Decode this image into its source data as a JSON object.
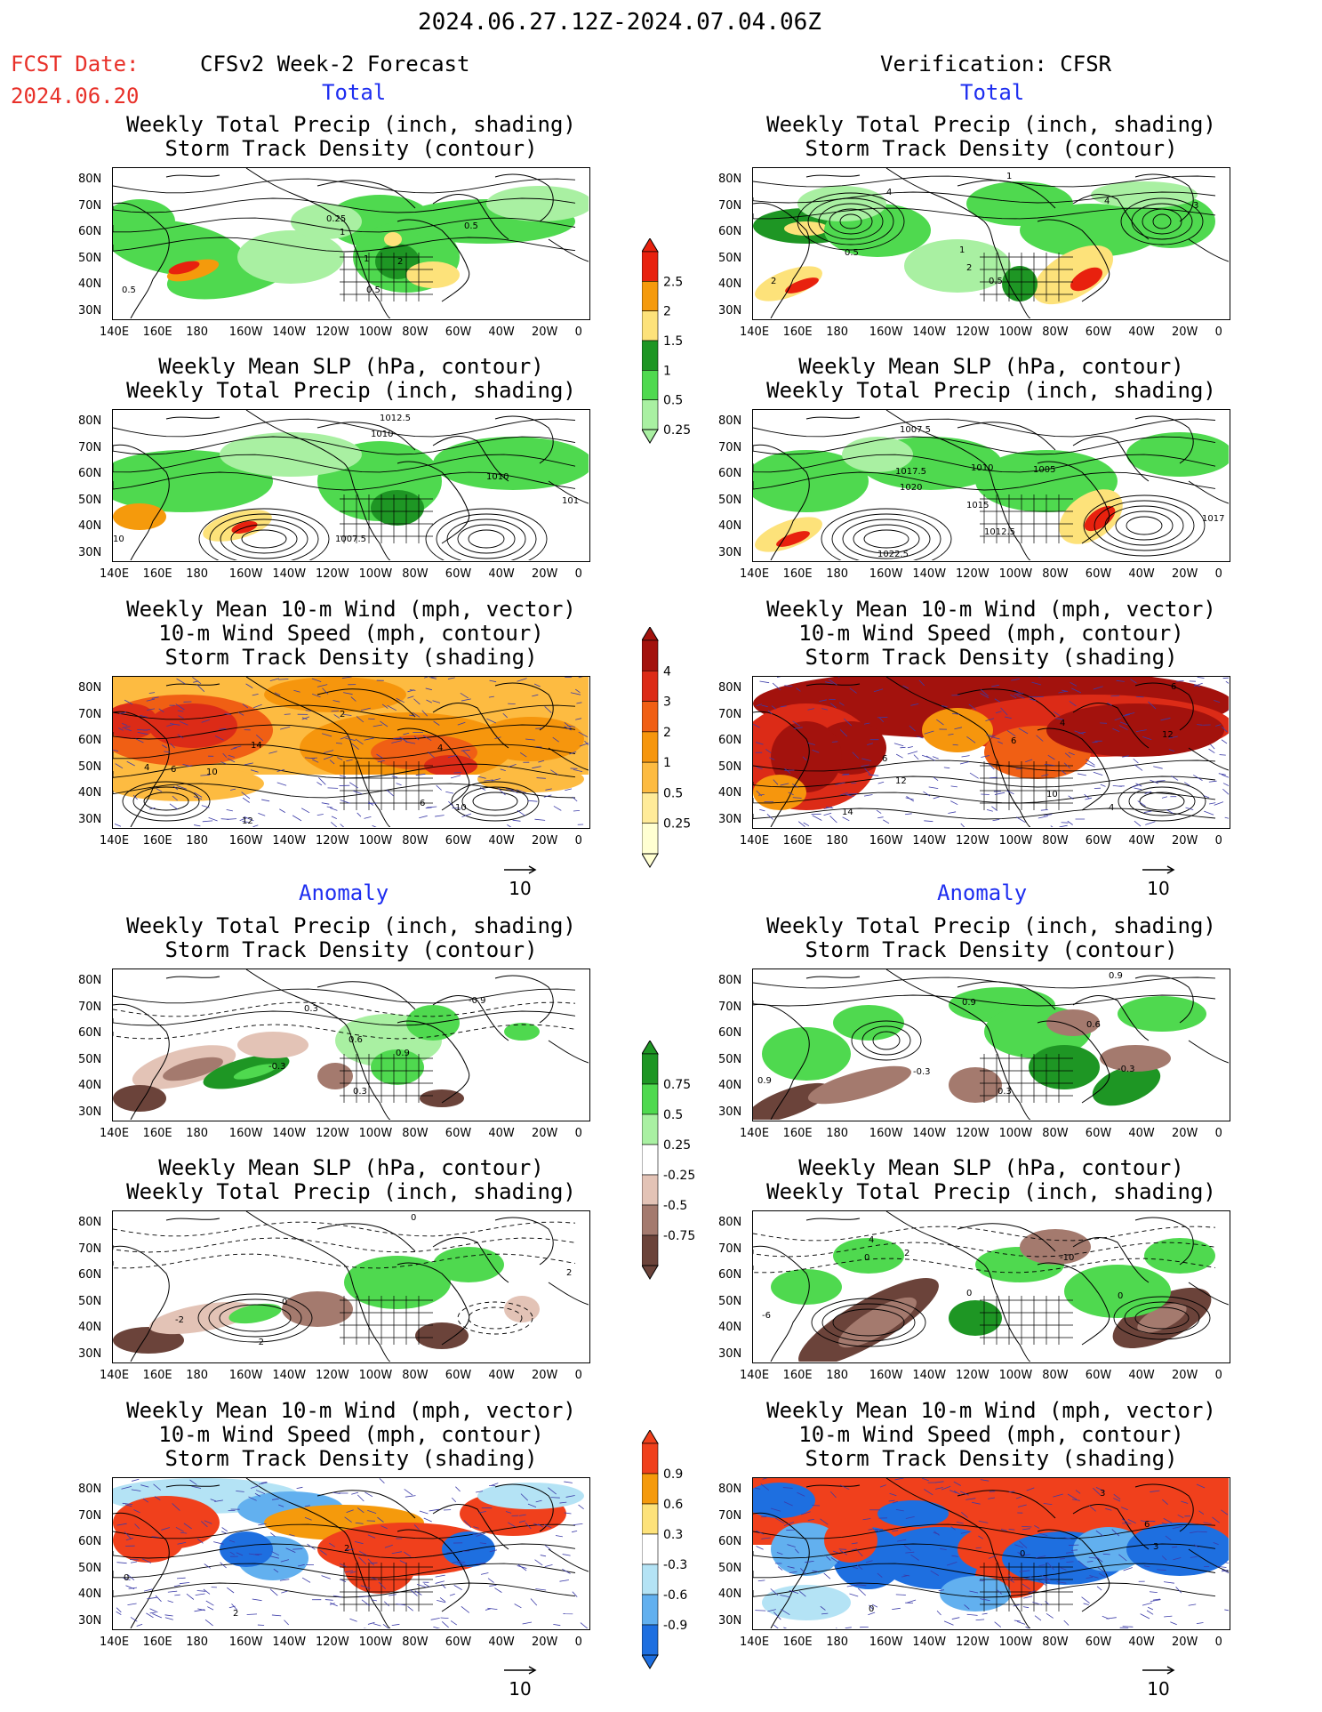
{
  "header": {
    "date_range": "2024.06.27.12Z-2024.07.04.06Z",
    "fcst_label": "FCST Date:",
    "fcst_date": "2024.06.20",
    "left_title": "CFSv2 Week-2 Forecast",
    "right_title": "Verification: CFSR"
  },
  "sections": {
    "total": "Total",
    "anomaly": "Anomaly"
  },
  "panel_titles": {
    "precip_storm": [
      "Weekly Total Precip (inch, shading)",
      "Storm Track Density (contour)"
    ],
    "slp_precip": [
      "Weekly Mean SLP (hPa, contour)",
      "Weekly Total Precip (inch, shading)"
    ],
    "wind_storm": [
      "Weekly Mean 10-m Wind (mph, vector)",
      "10-m Wind Speed (mph, contour)",
      "Storm Track Density (shading)"
    ]
  },
  "axes": {
    "lat_labels": [
      "80N",
      "70N",
      "60N",
      "50N",
      "40N",
      "30N"
    ],
    "lon_labels": [
      "140E",
      "160E",
      "180",
      "160W",
      "140W",
      "120W",
      "100W",
      "80W",
      "60W",
      "40W",
      "20W",
      "0"
    ]
  },
  "vector_reference": "10",
  "colorbars": {
    "precip_total": {
      "labels": [
        "2.5",
        "2",
        "1.5",
        "1",
        "0.5",
        "0.25"
      ],
      "colors": [
        "#e8210e",
        "#f59a0c",
        "#fde27a",
        "#1e9624",
        "#4fd94f",
        "#a9f0a2"
      ]
    },
    "storm_total": {
      "labels": [
        "4",
        "3",
        "2",
        "1",
        "0.5",
        "0.25"
      ],
      "colors": [
        "#a3120d",
        "#dc2b17",
        "#f05f14",
        "#f6960d",
        "#fdbb41",
        "#ffeb99",
        "#ffffd2"
      ]
    },
    "precip_anom": {
      "labels": [
        "0.75",
        "0.5",
        "0.25",
        "-0.25",
        "-0.5",
        "-0.75"
      ],
      "colors": [
        "#1e9624",
        "#4fd94f",
        "#a9f0a2",
        "#e3c3b6",
        "#a47a6e",
        "#6b433a"
      ]
    },
    "storm_anom": {
      "labels": [
        "0.9",
        "0.6",
        "0.3",
        "-0.3",
        "-0.6",
        "-0.9"
      ],
      "colors": [
        "#f0401c",
        "#f59a0c",
        "#fde27a",
        "#b4e3f5",
        "#62b0ef",
        "#1e6fe0"
      ]
    }
  },
  "contour_labels": {
    "l1": [
      "0.25",
      "1",
      "0.5",
      "2",
      "1",
      "0.5",
      "0.5"
    ],
    "r1": [
      "1",
      "4",
      "4",
      "3",
      "1",
      "2",
      "0.5",
      "0.5",
      "2"
    ],
    "l2": [
      "1012.5",
      "1010",
      "1010",
      "1007.5",
      "101",
      "10"
    ],
    "r2": [
      "1007.5",
      "1017.5",
      "1010",
      "1005",
      "1020",
      "1015",
      "1012.5",
      "1022.5",
      "1017"
    ],
    "l3": [
      "4",
      "6",
      "10",
      "14",
      "2",
      "4",
      "12",
      "10",
      "6"
    ],
    "r3": [
      "6",
      "6",
      "12",
      "4",
      "6",
      "12",
      "14",
      "10",
      "4"
    ],
    "l4": [
      "0.3",
      "0.6",
      "0.9",
      "-0.3",
      "-0.9",
      "0.3"
    ],
    "r4": [
      "0.9",
      "0.9",
      "0.6",
      "-0.3",
      "-0.3",
      "0.3",
      "0.9"
    ],
    "l5": [
      "0",
      "-2",
      "0",
      "-2",
      "2"
    ],
    "r5": [
      "4",
      "0",
      "2",
      "-10",
      "-6",
      "0",
      "0"
    ],
    "l6": [
      "2",
      "0",
      "2"
    ],
    "r6": [
      "3",
      "0",
      "6",
      "3",
      "0"
    ]
  }
}
